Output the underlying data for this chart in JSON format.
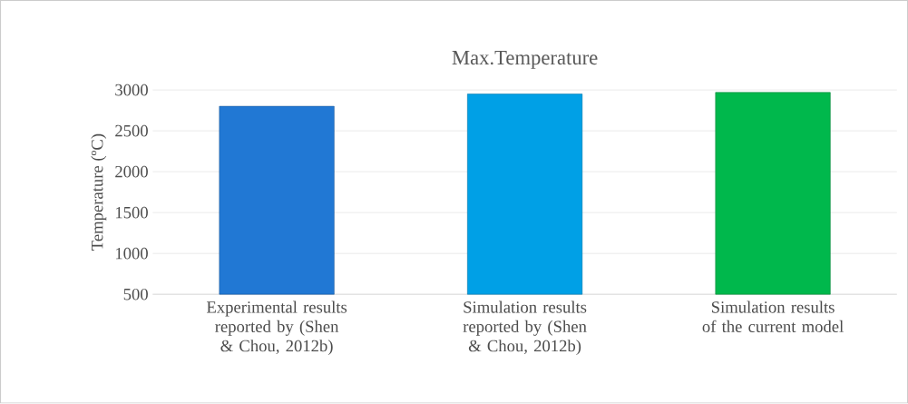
{
  "chart_data": {
    "type": "bar",
    "title": "Max.Temperature",
    "ylabel": "Temperature (ºC)",
    "categories": [
      "Experimental results reported by (Shen & Chou, 2012b)",
      "Simulation results reported by (Shen & Chou, 2012b)",
      "Simulation results of the current model"
    ],
    "values": [
      2800,
      2950,
      2970
    ],
    "colors": [
      "#2178d4",
      "#00a0e6",
      "#00b84c"
    ],
    "ylim": [
      500,
      3000
    ],
    "yticks": [
      500,
      1000,
      1500,
      2000,
      2500,
      3000
    ],
    "grid": "y"
  }
}
